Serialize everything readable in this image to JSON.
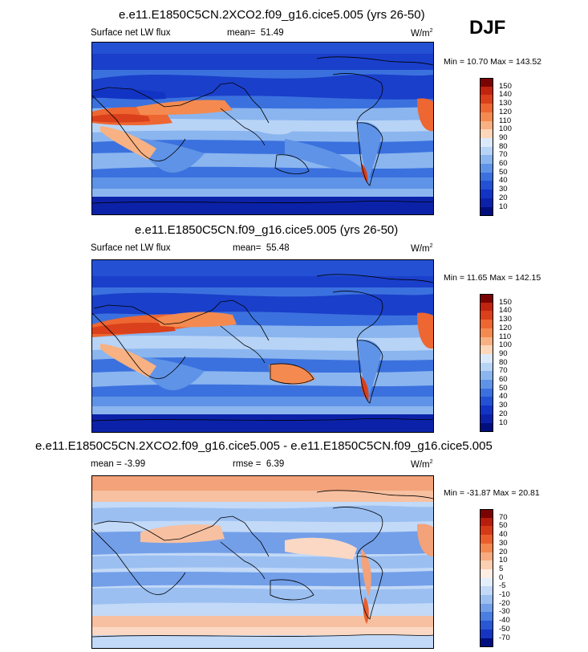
{
  "season": "DJF",
  "panels": [
    {
      "title": "e.e11.E1850C5CN.2XCO2.f09_g16.cice5.005 (yrs 26-50)",
      "left_label": "Surface net LW flux",
      "stat_label": "mean=",
      "stat_value": "51.49",
      "units": "W/m",
      "units_sup": "2",
      "min_label": "Min =",
      "min_value": "10.70",
      "max_label": "Max =",
      "max_value": "143.52",
      "colorbar": {
        "labels": [
          "150",
          "140",
          "130",
          "120",
          "110",
          "100",
          "90",
          "80",
          "70",
          "60",
          "50",
          "40",
          "30",
          "20",
          "10"
        ],
        "colors": [
          "#7a0403",
          "#c0240f",
          "#d9401b",
          "#ee6631",
          "#f48a4f",
          "#f8b182",
          "#fcd7b9",
          "#dbe9fb",
          "#b7d3f6",
          "#8ab5ef",
          "#5f93e7",
          "#3b71de",
          "#2450d3",
          "#1234c4",
          "#0b22a8",
          "#000e7e"
        ]
      }
    },
    {
      "title": "e.e11.E1850C5CN.f09_g16.cice5.005 (yrs 26-50)",
      "left_label": "Surface net LW flux",
      "stat_label": "mean=",
      "stat_value": "55.48",
      "units": "W/m",
      "units_sup": "2",
      "min_label": "Min =",
      "min_value": "11.65",
      "max_label": "Max =",
      "max_value": "142.15",
      "colorbar": {
        "labels": [
          "150",
          "140",
          "130",
          "120",
          "110",
          "100",
          "90",
          "80",
          "70",
          "60",
          "50",
          "40",
          "30",
          "20",
          "10"
        ],
        "colors": [
          "#7a0403",
          "#c0240f",
          "#d9401b",
          "#ee6631",
          "#f48a4f",
          "#f8b182",
          "#fcd7b9",
          "#dbe9fb",
          "#b7d3f6",
          "#8ab5ef",
          "#5f93e7",
          "#3b71de",
          "#2450d3",
          "#1234c4",
          "#0b22a8",
          "#000e7e"
        ]
      }
    },
    {
      "title": "e.e11.E1850C5CN.2XCO2.f09_g16.cice5.005 - e.e11.E1850C5CN.f09_g16.cice5.005",
      "left_label": "mean =  -3.99",
      "stat_label": "rmse =",
      "stat_value": "6.39",
      "units": "W/m",
      "units_sup": "2",
      "min_label": "Min =",
      "min_value": "-31.87",
      "max_label": "Max =",
      "max_value": "20.81",
      "colorbar": {
        "labels": [
          "70",
          "50",
          "40",
          "30",
          "20",
          "10",
          "5",
          "0",
          "-5",
          "-10",
          "-20",
          "-30",
          "-40",
          "-50",
          "-70"
        ],
        "colors": [
          "#7a0403",
          "#b51e0c",
          "#d43a18",
          "#ea5e2d",
          "#f3874f",
          "#f7ab80",
          "#fbcfb1",
          "#fdeee4",
          "#e3eefb",
          "#c2d9f7",
          "#9bbff1",
          "#739fe9",
          "#4a7ee1",
          "#2a57d4",
          "#1535c0",
          "#000e7e"
        ]
      }
    }
  ]
}
